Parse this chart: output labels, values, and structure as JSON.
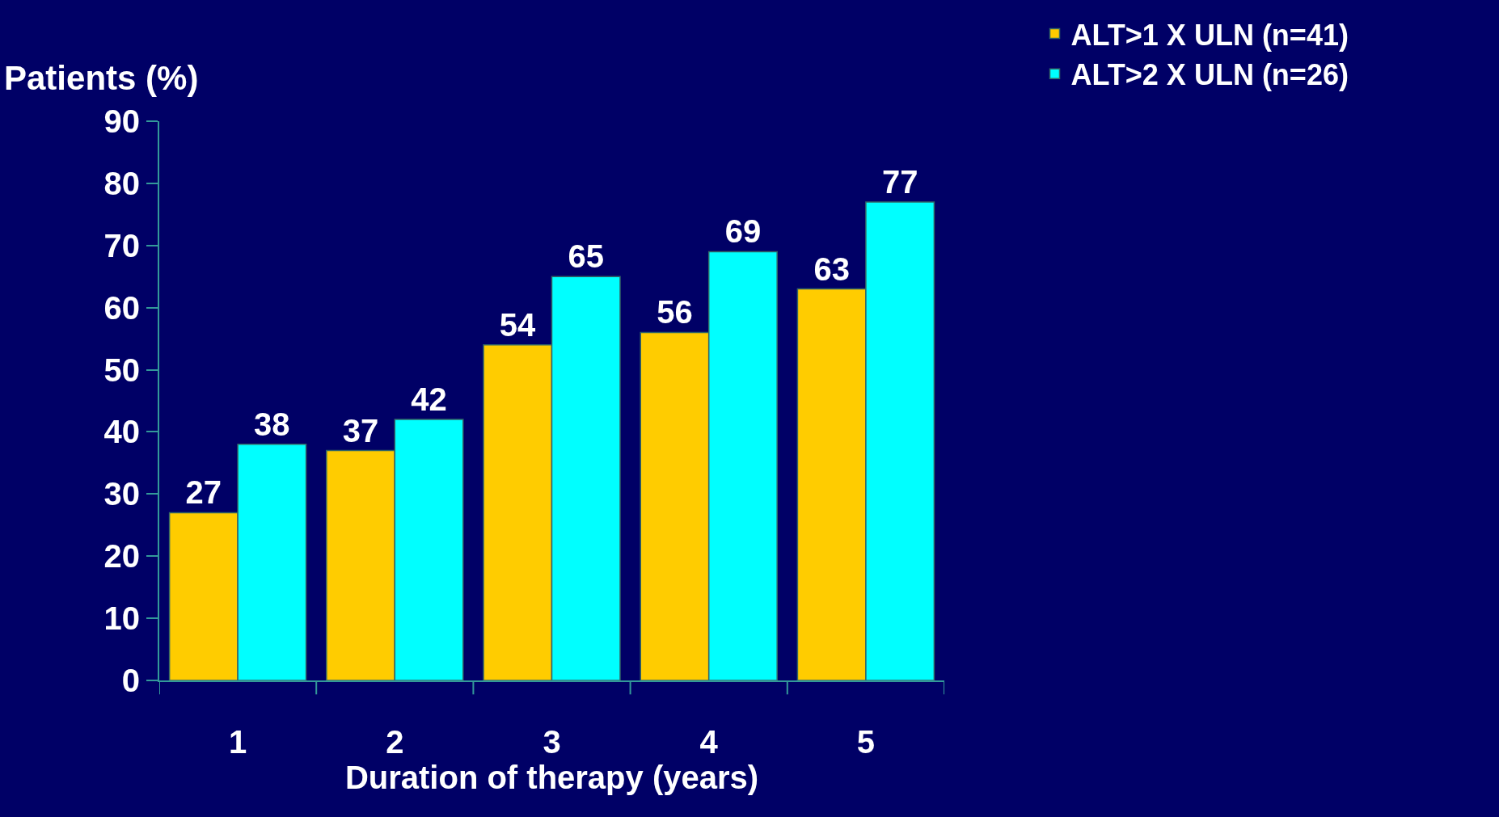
{
  "chart_data": {
    "type": "bar",
    "ylabel": "Patients (%)",
    "xlabel": "Duration of therapy (years)",
    "categories": [
      "1",
      "2",
      "3",
      "4",
      "5"
    ],
    "series": [
      {
        "name": "ALT>1 X ULN (n=41)",
        "color": "#ffcc00",
        "values": [
          27,
          37,
          54,
          56,
          63
        ]
      },
      {
        "name": "ALT>2 X ULN (n=26)",
        "color": "#00ffff",
        "values": [
          38,
          42,
          65,
          69,
          77
        ]
      }
    ],
    "ylim": [
      0,
      90
    ],
    "yticks": [
      0,
      10,
      20,
      30,
      40,
      50,
      60,
      70,
      80,
      90
    ],
    "grid": false,
    "legend": "top right",
    "data_labels": true
  }
}
